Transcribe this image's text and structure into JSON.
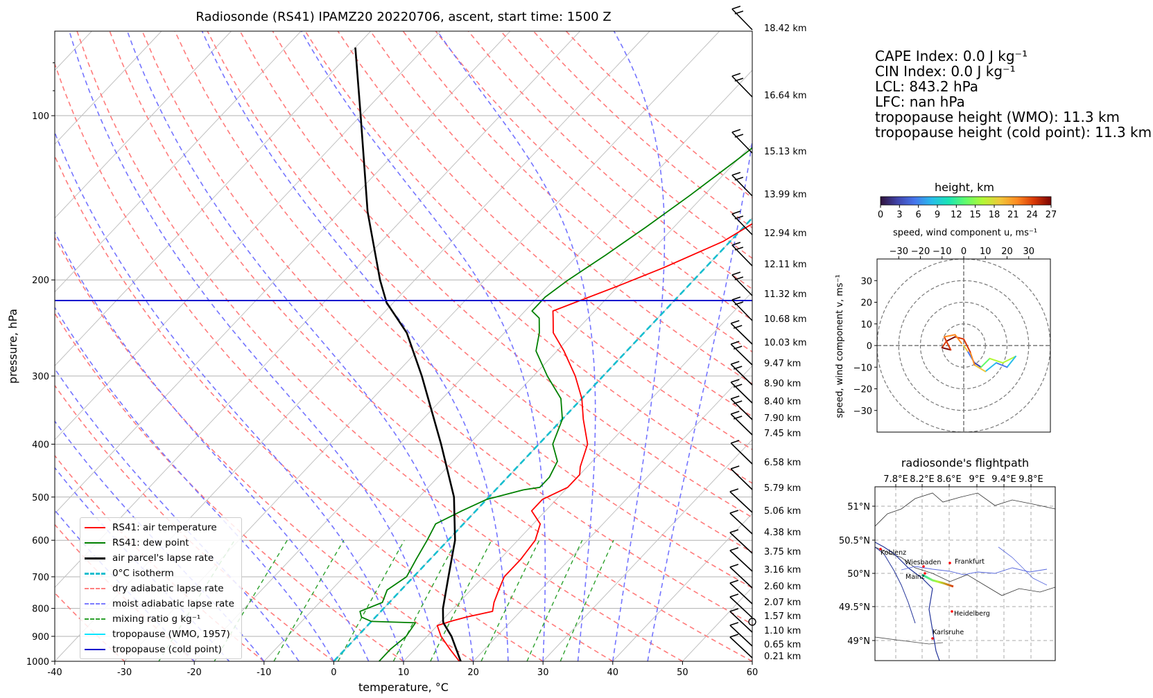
{
  "title": "Radiosonde (RS41) IPAMZ20 20220706, ascent, start time: 1500 Z",
  "skewt": {
    "xlabel": "temperature, °C",
    "ylabel": "pressure, hPa",
    "x_ticks": [
      "-40",
      "-30",
      "-20",
      "-10",
      "0",
      "10",
      "20",
      "30",
      "40",
      "50",
      "60"
    ],
    "y_ticks": [
      "100",
      "200",
      "300",
      "400",
      "500",
      "600",
      "700",
      "800",
      "900",
      "1000"
    ],
    "height_labels": [
      "18.42 km",
      "16.64 km",
      "15.13 km",
      "13.99 km",
      "12.94 km",
      "12.11 km",
      "11.32 km",
      "10.68 km",
      "10.03 km",
      "9.47 km",
      "8.90 km",
      "8.40 km",
      "7.90 km",
      "7.45 km",
      "6.58 km",
      "5.79 km",
      "5.06 km",
      "4.38 km",
      "3.75 km",
      "3.16 km",
      "2.60 km",
      "2.07 km",
      "1.57 km",
      "1.10 km",
      "0.65 km",
      "0.21 km"
    ]
  },
  "legend": {
    "items": [
      {
        "label": "RS41: air temperature",
        "color": "#ff0000",
        "style": "solid"
      },
      {
        "label": "RS41: dew point",
        "color": "#008000",
        "style": "solid"
      },
      {
        "label": "air parcel's lapse rate",
        "color": "#000000",
        "style": "solid-bold"
      },
      {
        "label": "0°C isotherm",
        "color": "#17becf",
        "style": "dashed-bold"
      },
      {
        "label": "dry adiabatic lapse rate",
        "color": "#ff8080",
        "style": "dashed"
      },
      {
        "label": "moist adiabatic lapse rate",
        "color": "#7b7bff",
        "style": "dashed"
      },
      {
        "label": "mixing ratio g kg⁻¹",
        "color": "#2ca02c",
        "style": "dashed"
      },
      {
        "label": "tropopause (WMO, 1957)",
        "color": "#00e5ff",
        "style": "solid"
      },
      {
        "label": "tropopause (cold point)",
        "color": "#0000cd",
        "style": "solid"
      }
    ]
  },
  "stats": {
    "cape": "CAPE Index: 0.0 J kg⁻¹",
    "cin": "CIN Index: 0.0 J kg⁻¹",
    "lcl": "LCL: 843.2 hPa",
    "lfc": "LFC: nan hPa",
    "trop_wmo": "tropopause height (WMO): 11.3 km",
    "trop_cold": "tropopause height (cold point): 11.3 km"
  },
  "colorbar": {
    "title": "height, km",
    "ticks": [
      "0",
      "3",
      "6",
      "9",
      "12",
      "15",
      "18",
      "21",
      "24",
      "27"
    ]
  },
  "hodograph": {
    "xlabel": "speed, wind component u, ms⁻¹",
    "ylabel": "speed, wind component v, ms⁻¹",
    "x_ticks": [
      "−30",
      "−20",
      "−10",
      "0",
      "10",
      "20",
      "30"
    ],
    "y_ticks": [
      "30",
      "20",
      "10",
      "0",
      "−10",
      "−20",
      "−30"
    ]
  },
  "map": {
    "title": "radiosonde's flightpath",
    "lon_ticks": [
      "7.8°E",
      "8.2°E",
      "8.6°E",
      "9°E",
      "9.4°E",
      "9.8°E"
    ],
    "lat_ticks": [
      "51°N",
      "50.5°N",
      "50°N",
      "49.5°N",
      "49°N"
    ],
    "cities": [
      "Koblenz",
      "Wiesbaden",
      "Frankfurt",
      "Mainz",
      "Heidelberg",
      "Karlsruhe"
    ]
  },
  "chart_data": [
    {
      "type": "line",
      "title": "Radiosonde (RS41) IPAMZ20 20220706, ascent, start time: 1500 Z",
      "xlabel": "temperature, °C",
      "ylabel": "pressure, hPa",
      "xlim": [
        -40,
        60
      ],
      "ylim": [
        1000,
        70
      ],
      "y_scale": "log",
      "grid": true,
      "legend_position": "lower-left",
      "series": [
        {
          "name": "RS41: air temperature",
          "points": [
            [
              1000,
              18
            ],
            [
              950,
              15
            ],
            [
              900,
              12
            ],
            [
              860,
              10
            ],
            [
              843,
              11.5
            ],
            [
              830,
              13
            ],
            [
              810,
              16
            ],
            [
              780,
              15
            ],
            [
              740,
              14
            ],
            [
              700,
              13
            ],
            [
              650,
              13
            ],
            [
              600,
              12.5
            ],
            [
              560,
              11
            ],
            [
              530,
              8
            ],
            [
              505,
              8
            ],
            [
              480,
              10
            ],
            [
              455,
              10
            ],
            [
              440,
              9
            ],
            [
              400,
              7
            ],
            [
              360,
              3
            ],
            [
              330,
              0
            ],
            [
              300,
              -4
            ],
            [
              270,
              -9
            ],
            [
              250,
              -13
            ],
            [
              235,
              -15
            ],
            [
              228,
              -16
            ],
            [
              220,
              -14
            ],
            [
              205,
              -10
            ],
            [
              190,
              -6
            ],
            [
              170,
              -1
            ],
            [
              150,
              2
            ],
            [
              130,
              5
            ],
            [
              115,
              8
            ],
            [
              100,
              10
            ],
            [
              90,
              12
            ],
            [
              80,
              14
            ],
            [
              75,
              16
            ]
          ]
        },
        {
          "name": "RS41: dew point",
          "points": [
            [
              1000,
              6.5
            ],
            [
              950,
              6.5
            ],
            [
              900,
              7
            ],
            [
              850,
              6.5
            ],
            [
              845,
              0
            ],
            [
              830,
              -2
            ],
            [
              810,
              -3
            ],
            [
              780,
              -1
            ],
            [
              740,
              -2
            ],
            [
              700,
              -1
            ],
            [
              650,
              -2
            ],
            [
              600,
              -3
            ],
            [
              560,
              -4
            ],
            [
              530,
              -2
            ],
            [
              505,
              0
            ],
            [
              485,
              4
            ],
            [
              480,
              6
            ],
            [
              460,
              6
            ],
            [
              430,
              5
            ],
            [
              400,
              2
            ],
            [
              360,
              0
            ],
            [
              330,
              -3
            ],
            [
              300,
              -8
            ],
            [
              270,
              -13
            ],
            [
              250,
              -15
            ],
            [
              235,
              -17
            ],
            [
              228,
              -19
            ],
            [
              215,
              -19
            ],
            [
              200,
              -18
            ],
            [
              180,
              -16
            ],
            [
              160,
              -14
            ],
            [
              140,
              -12
            ],
            [
              120,
              -10
            ],
            [
              100,
              -8
            ],
            [
              85,
              -6
            ],
            [
              75,
              -4
            ]
          ]
        },
        {
          "name": "air parcel's lapse rate",
          "points": [
            [
              1000,
              18.2
            ],
            [
              900,
              13.5
            ],
            [
              850,
              10.5
            ],
            [
              843,
              10.2
            ],
            [
              800,
              8.5
            ],
            [
              700,
              5
            ],
            [
              600,
              1
            ],
            [
              500,
              -5
            ],
            [
              400,
              -14
            ],
            [
              300,
              -26
            ],
            [
              250,
              -34
            ],
            [
              220,
              -41
            ],
            [
              200,
              -45
            ],
            [
              150,
              -56
            ],
            [
              100,
              -70
            ],
            [
              75,
              -80
            ]
          ]
        }
      ]
    },
    {
      "type": "scatter",
      "title": "",
      "xlabel": "speed, wind component u, ms⁻¹",
      "ylabel": "speed, wind component v, ms⁻¹",
      "xlim": [
        -40,
        40
      ],
      "ylim": [
        -40,
        40
      ],
      "series": [
        {
          "name": "",
          "points": [
            [
              0,
              0
            ],
            [
              2,
              -3
            ],
            [
              5,
              -8
            ],
            [
              8,
              -10
            ],
            [
              12,
              -6
            ],
            [
              18,
              -8
            ],
            [
              24,
              -5
            ],
            [
              20,
              -10
            ],
            [
              15,
              -8
            ],
            [
              10,
              -12
            ],
            [
              5,
              -9
            ],
            [
              3,
              -3
            ],
            [
              0,
              3
            ],
            [
              -4,
              4
            ],
            [
              -8,
              2
            ],
            [
              -10,
              -1
            ],
            [
              -6,
              -2
            ],
            [
              -9,
              4
            ],
            [
              -4,
              5
            ],
            [
              -1,
              1
            ]
          ]
        }
      ]
    }
  ]
}
